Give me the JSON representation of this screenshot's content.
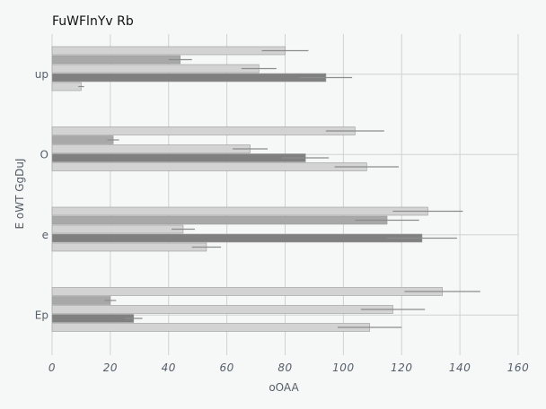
{
  "chart_data": {
    "type": "bar",
    "orientation": "horizontal",
    "title": "FuWFlnYv Rb",
    "xlabel": "oOAA",
    "ylabel": "E oWT GgDuJ",
    "categories": [
      "up",
      "O",
      "e",
      "Ep"
    ],
    "xlim": [
      0,
      160
    ],
    "xticks": [
      0,
      20,
      40,
      60,
      80,
      100,
      120,
      140,
      160
    ],
    "grid": true,
    "series": [
      {
        "values": [
          80,
          104,
          129,
          134
        ],
        "errors": [
          8,
          10,
          12,
          13
        ],
        "color": "#d3d3d3"
      },
      {
        "values": [
          44,
          21,
          115,
          20
        ],
        "errors": [
          4,
          2,
          11,
          2
        ],
        "color": "#a8a8a8"
      },
      {
        "values": [
          71,
          68,
          45,
          117
        ],
        "errors": [
          6,
          6,
          4,
          11
        ],
        "color": "#d3d3d3"
      },
      {
        "values": [
          94,
          87,
          127,
          28
        ],
        "errors": [
          9,
          8,
          12,
          3
        ],
        "color": "#808080"
      },
      {
        "values": [
          10,
          108,
          53,
          109
        ],
        "errors": [
          1,
          11,
          5,
          11
        ],
        "color": "#d3d3d3"
      }
    ],
    "error_color": "#8c8c8c"
  }
}
